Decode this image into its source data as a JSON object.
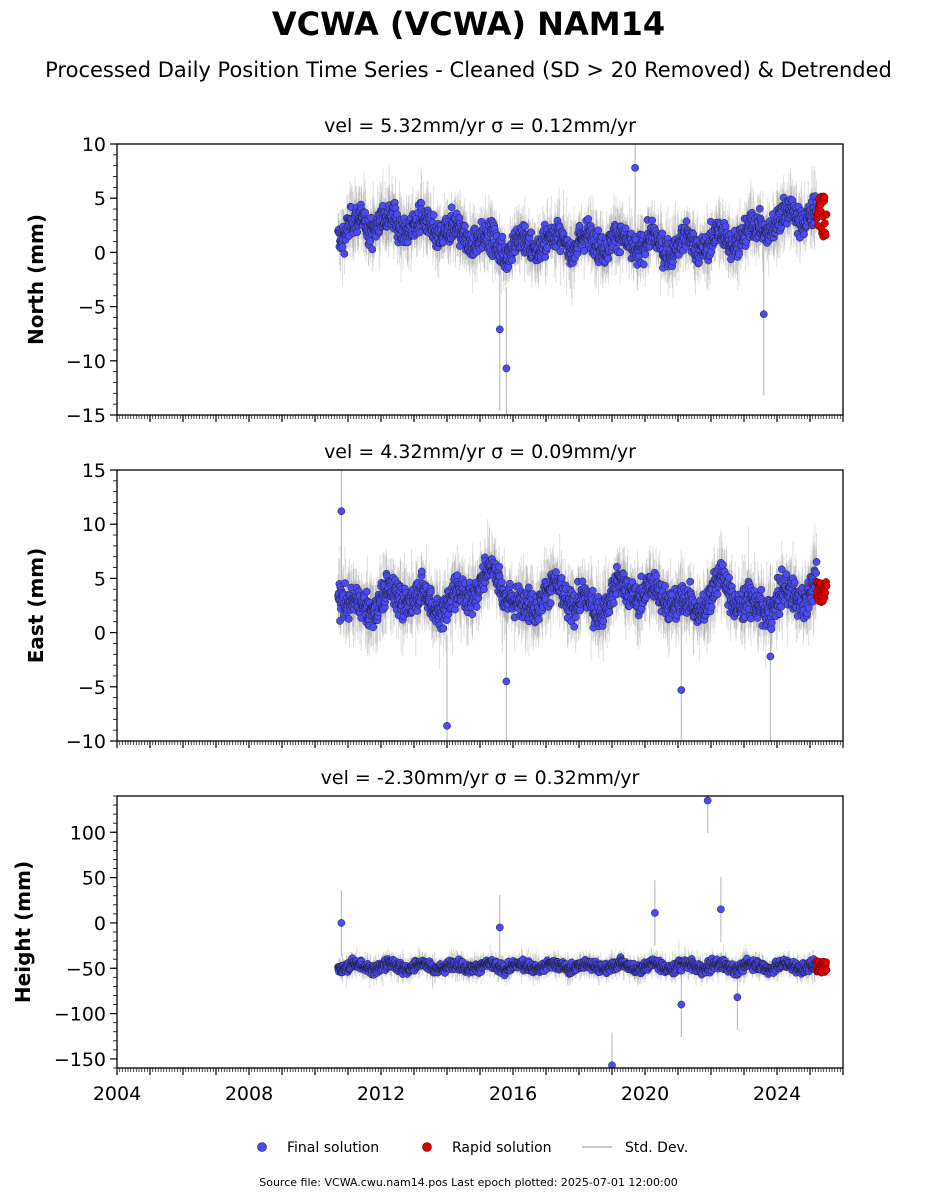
{
  "title": "VCWA (VCWA) NAM14",
  "subtitle": "Processed Daily Position Time Series - Cleaned (SD > 20 Removed) & Detrended",
  "colors": {
    "final": "#4b4bf0",
    "rapid": "#e00000",
    "stddev": "#b4b4b4",
    "marker_edge": "#1e1e3c"
  },
  "legend": {
    "final_label": "Final solution",
    "rapid_label": "Rapid solution",
    "stddev_label": "Std. Dev."
  },
  "source_text": "Source file: VCWA.cwu.nam14.pos  Last epoch plotted: 2025-07-01 12:00:00",
  "chart_data": [
    {
      "type": "scatter",
      "title": "vel = 5.32mm/yr   σ = 0.12mm/yr",
      "ylabel": "North (mm)",
      "xlim": [
        2004,
        2026
      ],
      "ylim": [
        -15,
        10
      ],
      "yticks": [
        -15,
        -10,
        -5,
        0,
        5,
        10
      ],
      "ytick_labels": [
        "−15",
        "−10",
        "−5",
        "0",
        "5",
        "10"
      ],
      "x_start": 2010.7,
      "x_end_final": 2025.2,
      "x_end": 2025.5,
      "trend": [
        [
          2010.7,
          2.0
        ],
        [
          2012.0,
          3.0
        ],
        [
          2014.0,
          2.0
        ],
        [
          2015.8,
          0.5
        ],
        [
          2017.0,
          1.0
        ],
        [
          2019.0,
          1.0
        ],
        [
          2021.0,
          0.5
        ],
        [
          2023.0,
          1.5
        ],
        [
          2024.5,
          3.5
        ],
        [
          2025.5,
          3.5
        ]
      ],
      "spread": 3.0,
      "sd": 2.5,
      "rapid_range": [
        1.3,
        5.2
      ],
      "outliers": [
        [
          2015.6,
          -7.1
        ],
        [
          2015.8,
          -10.7
        ],
        [
          2019.7,
          7.8
        ],
        [
          2023.6,
          -5.7
        ]
      ]
    },
    {
      "type": "scatter",
      "title": "vel = 4.32mm/yr   σ = 0.09mm/yr",
      "ylabel": "East (mm)",
      "xlim": [
        2004,
        2026
      ],
      "ylim": [
        -10,
        15
      ],
      "yticks": [
        -10,
        -5,
        0,
        5,
        10,
        15
      ],
      "ytick_labels": [
        "−10",
        "−5",
        "0",
        "5",
        "10",
        "15"
      ],
      "x_start": 2010.7,
      "x_end_final": 2025.2,
      "x_end": 2025.5,
      "trend": [
        [
          2010.7,
          4.0
        ],
        [
          2011.2,
          2.0
        ],
        [
          2012.5,
          3.5
        ],
        [
          2014.0,
          2.5
        ],
        [
          2015.5,
          5.5
        ],
        [
          2016.2,
          2.0
        ],
        [
          2017.2,
          4.0
        ],
        [
          2018.5,
          2.0
        ],
        [
          2019.2,
          4.0
        ],
        [
          2020.5,
          3.5
        ],
        [
          2021.5,
          2.0
        ],
        [
          2022.3,
          4.5
        ],
        [
          2023.3,
          2.0
        ],
        [
          2024.5,
          3.5
        ],
        [
          2025.5,
          4.0
        ]
      ],
      "spread": 3.2,
      "sd": 2.8,
      "rapid_range": [
        2.8,
        4.9
      ],
      "outliers": [
        [
          2010.8,
          11.2
        ],
        [
          2014.0,
          -8.6
        ],
        [
          2015.8,
          -4.5
        ],
        [
          2021.1,
          -5.3
        ],
        [
          2023.8,
          -2.2
        ]
      ]
    },
    {
      "type": "scatter",
      "title": "vel = -2.30mm/yr   σ = 0.32mm/yr",
      "ylabel": "Height (mm)",
      "xlabel": "",
      "xlim": [
        2004,
        2026
      ],
      "ylim": [
        -160,
        140
      ],
      "yticks": [
        -150,
        -100,
        -50,
        0,
        50,
        100
      ],
      "ytick_labels": [
        "−150",
        "−100",
        "−50",
        "0",
        "50",
        "100"
      ],
      "xticks": [
        2004,
        2008,
        2012,
        2016,
        2020,
        2024
      ],
      "xtick_labels": [
        "2004",
        "2008",
        "2012",
        "2016",
        "2020",
        "2024"
      ],
      "x_start": 2010.7,
      "x_end_final": 2025.2,
      "x_end": 2025.5,
      "trend": [
        [
          2010.7,
          -48
        ],
        [
          2025.5,
          -48
        ]
      ],
      "spread": 12,
      "sd": 12,
      "rapid_range": [
        -55,
        -42
      ],
      "outliers": [
        [
          2010.8,
          0
        ],
        [
          2015.6,
          -5
        ],
        [
          2019.0,
          -157
        ],
        [
          2020.3,
          11
        ],
        [
          2021.1,
          -90
        ],
        [
          2021.9,
          135
        ],
        [
          2022.3,
          15
        ],
        [
          2022.8,
          -82
        ]
      ]
    }
  ]
}
